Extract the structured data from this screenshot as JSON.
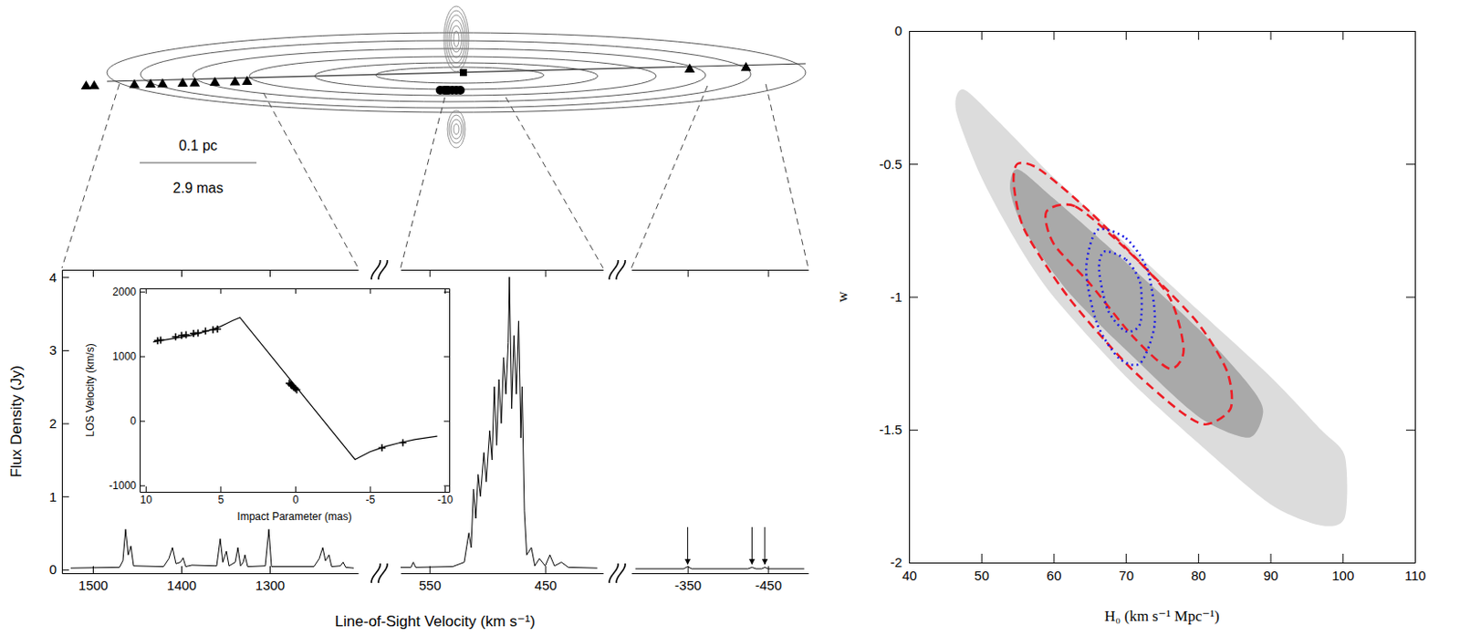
{
  "diagram": {
    "scale_labels": [
      "0.1 pc",
      "2.9 mas"
    ]
  },
  "chart_data": [
    {
      "type": "line",
      "y_label": "Flux Density (Jy)",
      "x_label": "Line-of-Sight Velocity (km s⁻¹)",
      "ylim": [
        -0.05,
        4.1
      ],
      "yticks": [
        0,
        1,
        2,
        3,
        4
      ],
      "color": "#000000",
      "segments": [
        {
          "xlim": [
            1535,
            1200
          ],
          "xticks": [
            1500,
            1400,
            1300
          ],
          "x": [
            1525,
            1470,
            1466,
            1463,
            1460,
            1457,
            1454,
            1420,
            1414,
            1410,
            1406,
            1401,
            1398,
            1395,
            1388,
            1360,
            1356,
            1353,
            1349,
            1346,
            1339,
            1336,
            1333,
            1330,
            1328,
            1325,
            1305,
            1301,
            1298,
            1250,
            1244,
            1240,
            1237,
            1233,
            1230,
            1220,
            1217,
            1214,
            1205
          ],
          "values": [
            0.02,
            0.03,
            0.12,
            0.55,
            0.2,
            0.32,
            0.05,
            0.04,
            0.15,
            0.3,
            0.08,
            0.1,
            0.16,
            0.04,
            0.06,
            0.05,
            0.42,
            0.1,
            0.25,
            0.05,
            0.1,
            0.3,
            0.05,
            0.1,
            0.2,
            0.04,
            0.05,
            0.55,
            0.04,
            0.04,
            0.15,
            0.3,
            0.12,
            0.2,
            0.04,
            0.05,
            0.1,
            0.03,
            0.02
          ]
        },
        {
          "xlim": [
            575,
            400
          ],
          "xticks": [
            550,
            450
          ],
          "x": [
            575,
            566,
            564,
            562,
            530,
            520,
            516,
            514,
            512,
            510,
            508,
            506,
            503,
            501,
            498,
            496,
            494,
            492,
            490,
            488,
            486,
            484,
            482,
            481,
            479,
            477,
            475,
            473,
            471,
            470,
            468,
            466,
            462,
            459,
            455,
            450,
            446,
            442,
            436,
            430,
            405
          ],
          "values": [
            0.03,
            0.03,
            0.1,
            0.03,
            0.04,
            0.1,
            0.5,
            0.3,
            1.1,
            0.7,
            1.3,
            1,
            1.6,
            1.2,
            1.9,
            1.5,
            2.5,
            1.7,
            2.6,
            2,
            2.9,
            2.4,
            3.1,
            4,
            2.2,
            3.2,
            2.4,
            3.4,
            1.8,
            2.5,
            0.8,
            0.2,
            0.3,
            0.05,
            0.15,
            0.05,
            0.2,
            0.05,
            0.1,
            0.03,
            0.02
          ]
        },
        {
          "xlim": [
            -280,
            -500
          ],
          "xticks": [
            -350,
            -450
          ],
          "x": [
            -285,
            -345,
            -350,
            -355,
            -425,
            -430,
            -435,
            -442,
            -446,
            -450,
            -495
          ],
          "values": [
            0.01,
            0.01,
            0.04,
            0.01,
            0.01,
            0.03,
            0.01,
            0.01,
            0.03,
            0.01,
            0.01
          ],
          "arrows": [
            -350,
            -430,
            -446
          ]
        }
      ]
    },
    {
      "type": "line",
      "x_label": "Impact Parameter (mas)",
      "y_label": "LOS Velocity (km/s)",
      "xlim": [
        10.4,
        -10.3
      ],
      "xticks": [
        10,
        5,
        0,
        -5,
        -10
      ],
      "ylim": [
        -1100,
        2050
      ],
      "yticks": [
        -1000,
        0,
        1000,
        2000
      ],
      "series": [
        {
          "type": "line",
          "color": "#000000",
          "x": [
            9.5,
            8.5,
            7,
            6,
            5,
            4.2,
            3.7,
            -4,
            -5,
            -6,
            -7,
            -8,
            -9.5
          ],
          "values": [
            1220,
            1260,
            1320,
            1380,
            1460,
            1550,
            1600,
            -600,
            -480,
            -400,
            -340,
            -290,
            -240
          ]
        },
        {
          "type": "scatter",
          "marker": "plus",
          "color": "#000000",
          "x": [
            9.2,
            9,
            8,
            7.6,
            7.3,
            6.8,
            6.5,
            6,
            5.5,
            5.2,
            0.4,
            0.3,
            0.25,
            0.2,
            0.1,
            0,
            -0.1,
            -5.8,
            -7.2
          ],
          "values": [
            1240,
            1250,
            1300,
            1320,
            1330,
            1350,
            1360,
            1390,
            1410,
            1420,
            580,
            560,
            550,
            540,
            520,
            500,
            480,
            -420,
            -340
          ]
        }
      ]
    },
    {
      "type": "contour",
      "x_label": "H₀ (km s⁻¹ Mpc⁻¹)",
      "y_label": "w",
      "xlim": [
        40,
        110
      ],
      "xticks": [
        40,
        50,
        60,
        70,
        80,
        90,
        100,
        110
      ],
      "ylim": [
        -2,
        0
      ],
      "yticks": [
        -2,
        -1.5,
        -1,
        -0.5,
        0
      ],
      "series": [
        {
          "color": "#dcdcdc",
          "line_style": "filled",
          "x": [
            47.5,
            52,
            60,
            70,
            80,
            90,
            97,
            100.3,
            100.3,
            97,
            90,
            80,
            70,
            60,
            55,
            50,
            46.5
          ],
          "values": [
            -0.22,
            -0.33,
            -0.55,
            -0.8,
            -1.05,
            -1.3,
            -1.5,
            -1.6,
            -1.83,
            -1.86,
            -1.78,
            -1.55,
            -1.3,
            -1,
            -0.8,
            -0.55,
            -0.3
          ]
        },
        {
          "color": "#a9a9a9",
          "line_style": "filled",
          "x": [
            55,
            60,
            70,
            80,
            87,
            89,
            87,
            80,
            70,
            62,
            56,
            54
          ],
          "values": [
            -0.52,
            -0.63,
            -0.87,
            -1.12,
            -1.33,
            -1.43,
            -1.53,
            -1.45,
            -1.2,
            -0.98,
            -0.75,
            -0.6
          ]
        },
        {
          "color": "#ee1c25",
          "line_style": "dashed",
          "x": [
            55,
            58,
            65,
            73,
            80,
            84,
            84.5,
            81,
            77,
            70,
            62,
            56,
            54.5
          ],
          "values": [
            -0.5,
            -0.52,
            -0.68,
            -0.9,
            -1.1,
            -1.28,
            -1.42,
            -1.48,
            -1.42,
            -1.25,
            -1,
            -0.75,
            -0.58
          ]
        },
        {
          "color": "#ee1c25",
          "line_style": "dashed",
          "x": [
            59,
            63,
            70,
            76,
            78,
            76,
            71,
            65,
            60
          ],
          "values": [
            -0.68,
            -0.66,
            -0.82,
            -1,
            -1.2,
            -1.27,
            -1.15,
            -0.95,
            -0.8
          ]
        },
        {
          "color": "#1f1fe6",
          "line_style": "dotted",
          "x": [
            66,
            70,
            73,
            74,
            72,
            69,
            66,
            64.5
          ],
          "values": [
            -0.75,
            -0.78,
            -0.9,
            -1.1,
            -1.25,
            -1.23,
            -1.1,
            -0.9
          ]
        },
        {
          "color": "#1f1fe6",
          "line_style": "dotted",
          "x": [
            67,
            70,
            72,
            72,
            70,
            67.5,
            66.3
          ],
          "values": [
            -0.83,
            -0.86,
            -0.95,
            -1.1,
            -1.13,
            -1.05,
            -0.9
          ]
        }
      ]
    }
  ]
}
